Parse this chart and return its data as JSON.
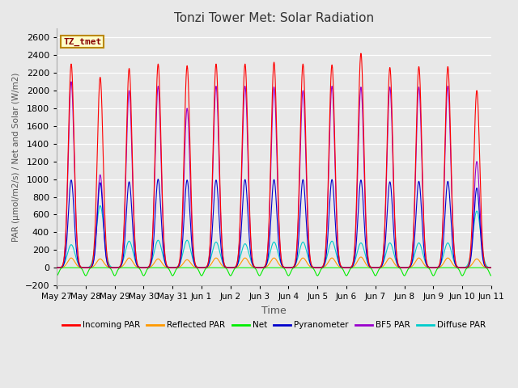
{
  "title": "Tonzi Tower Met: Solar Radiation",
  "xlabel": "Time",
  "ylabel": "PAR (μmol/m2/s) / Net and Solar (W/m2)",
  "ylim": [
    -200,
    2700
  ],
  "yticks": [
    -200,
    0,
    200,
    400,
    600,
    800,
    1000,
    1200,
    1400,
    1600,
    1800,
    2000,
    2200,
    2400,
    2600
  ],
  "bg_color": "#e8e8e8",
  "plot_bg_color": "#e8e8e8",
  "annotation_label": "TZ_tmet",
  "annotation_box_color": "#ffffcc",
  "annotation_border_color": "#bb8800",
  "series": [
    {
      "label": "Incoming PAR",
      "color": "#ff0000",
      "lw": 0.8
    },
    {
      "label": "Reflected PAR",
      "color": "#ff9900",
      "lw": 0.8
    },
    {
      "label": "Net",
      "color": "#00ee00",
      "lw": 0.8
    },
    {
      "label": "Pyranometer",
      "color": "#0000cc",
      "lw": 0.8
    },
    {
      "label": "BF5 PAR",
      "color": "#9900cc",
      "lw": 0.8
    },
    {
      "label": "Diffuse PAR",
      "color": "#00cccc",
      "lw": 0.8
    }
  ],
  "x_tick_labels": [
    "May 27",
    "May 28",
    "May 29",
    "May 30",
    "May 31",
    "Jun 1",
    "Jun 2",
    "Jun 3",
    "Jun 4",
    "Jun 5",
    "Jun 6",
    "Jun 7",
    "Jun 8",
    "Jun 9",
    "Jun 10",
    "Jun 11"
  ],
  "n_days": 15,
  "peaks_incoming": [
    2300,
    2150,
    2250,
    2300,
    2280,
    2300,
    2300,
    2320,
    2300,
    2290,
    2420,
    2260,
    2270,
    2270,
    2000
  ],
  "peaks_reflected": [
    110,
    100,
    110,
    100,
    90,
    110,
    110,
    110,
    110,
    110,
    120,
    110,
    110,
    110,
    100
  ],
  "peaks_net": [
    760,
    710,
    760,
    760,
    720,
    780,
    780,
    790,
    790,
    790,
    800,
    760,
    760,
    770,
    700
  ],
  "peaks_pyranometer": [
    990,
    960,
    970,
    1000,
    990,
    990,
    995,
    995,
    995,
    995,
    990,
    970,
    975,
    975,
    900
  ],
  "peaks_bf5par": [
    2100,
    1050,
    2000,
    2050,
    1800,
    2050,
    2050,
    2040,
    2000,
    2050,
    2040,
    2040,
    2040,
    2050,
    1200
  ],
  "peaks_diffuse": [
    260,
    700,
    300,
    310,
    310,
    290,
    270,
    290,
    290,
    300,
    280,
    280,
    280,
    280,
    640
  ],
  "sigma_incoming": 0.1,
  "sigma_reflected": 0.12,
  "sigma_net": 0.11,
  "sigma_pyranometer": 0.1,
  "sigma_bf5par": 0.1,
  "sigma_diffuse": 0.13
}
